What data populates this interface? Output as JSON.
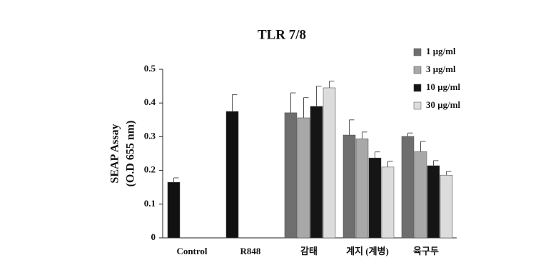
{
  "chart_data": {
    "type": "bar",
    "title": "TLR 7/8",
    "y_label": [
      "SEAP Assay",
      "(O.D 655 nm)"
    ],
    "categories": [
      "Control",
      "R848",
      "감태",
      "계지 (계병)",
      "육구두"
    ],
    "ylim": [
      0,
      0.5
    ],
    "yticks": [
      0,
      0.1,
      0.2,
      0.3,
      0.4,
      0.5
    ],
    "series": [
      {
        "color": "#111111",
        "values": [
          0.165,
          0.375,
          null,
          null,
          null
        ],
        "errors": [
          0.013,
          0.05,
          null,
          null,
          null
        ]
      },
      {
        "name": "1 μg/ml",
        "color": "#6e6e6e",
        "values": [
          null,
          null,
          0.371,
          0.305,
          0.301
        ],
        "errors": [
          null,
          null,
          0.059,
          0.045,
          0.01
        ]
      },
      {
        "name": "3 μg/ml",
        "color": "#a8a8a8",
        "values": [
          null,
          null,
          0.356,
          0.294,
          0.256
        ],
        "errors": [
          null,
          null,
          0.06,
          0.02,
          0.03
        ]
      },
      {
        "name": "10 μg/ml",
        "color": "#151515",
        "values": [
          null,
          null,
          0.39,
          0.237,
          0.214
        ],
        "errors": [
          null,
          null,
          0.06,
          0.018,
          0.015
        ]
      },
      {
        "name": "30 μg/ml",
        "color": "#dcdcdc",
        "values": [
          null,
          null,
          0.445,
          0.21,
          0.186
        ],
        "errors": [
          null,
          null,
          0.02,
          0.017,
          0.011
        ]
      }
    ]
  }
}
